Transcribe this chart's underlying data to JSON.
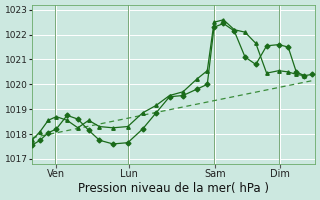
{
  "xlabel": "Pression niveau de la mer( hPa )",
  "bg_color": "#cce8e0",
  "plot_bg_color": "#cce8e0",
  "grid_color": "#ffffff",
  "line_color": "#1a6b1a",
  "trend_color": "#3a8c3a",
  "vline_color": "#7aaa7a",
  "spine_color": "#6aaa6a",
  "ylim": [
    1016.8,
    1023.2
  ],
  "yticks": [
    1017,
    1018,
    1019,
    1020,
    1021,
    1022,
    1023
  ],
  "xlim": [
    0,
    10.5
  ],
  "day_labels": [
    "| Ven",
    "Lun",
    "Sam",
    "| Dim"
  ],
  "day_positions": [
    0.9,
    3.6,
    6.8,
    9.2
  ],
  "vline_positions": [
    0.85,
    3.55,
    6.75,
    9.15
  ],
  "series1_x": [
    0.0,
    0.3,
    0.6,
    0.9,
    1.3,
    1.7,
    2.1,
    2.5,
    3.0,
    3.55,
    4.1,
    4.6,
    5.1,
    5.6,
    6.1,
    6.5,
    6.75,
    7.1,
    7.5,
    7.9,
    8.3,
    8.7,
    9.15,
    9.5,
    9.8,
    10.1,
    10.4
  ],
  "series1_y": [
    1017.55,
    1017.75,
    1018.05,
    1018.2,
    1018.75,
    1018.6,
    1018.15,
    1017.75,
    1017.6,
    1017.65,
    1018.2,
    1018.85,
    1019.5,
    1019.55,
    1019.8,
    1020.0,
    1022.3,
    1022.45,
    1022.15,
    1021.1,
    1020.8,
    1021.55,
    1021.6,
    1021.5,
    1020.5,
    1020.35,
    1020.4
  ],
  "series2_x": [
    0.0,
    0.3,
    0.6,
    0.9,
    1.3,
    1.7,
    2.1,
    2.5,
    3.0,
    3.55,
    4.1,
    4.6,
    5.1,
    5.6,
    6.1,
    6.5,
    6.75,
    7.1,
    7.5,
    7.9,
    8.3,
    8.7,
    9.15,
    9.5,
    9.8,
    10.1
  ],
  "series2_y": [
    1017.75,
    1018.1,
    1018.55,
    1018.7,
    1018.55,
    1018.25,
    1018.55,
    1018.3,
    1018.25,
    1018.3,
    1018.85,
    1019.15,
    1019.55,
    1019.7,
    1020.2,
    1020.55,
    1022.5,
    1022.6,
    1022.2,
    1022.1,
    1021.65,
    1020.45,
    1020.55,
    1020.5,
    1020.4,
    1020.35
  ],
  "trend_x": [
    0.0,
    10.4
  ],
  "trend_y": [
    1017.85,
    1020.15
  ],
  "marker_size": 2.5,
  "linewidth": 0.9,
  "ylabel_fontsize": 6.5,
  "xlabel_fontsize": 8.5
}
